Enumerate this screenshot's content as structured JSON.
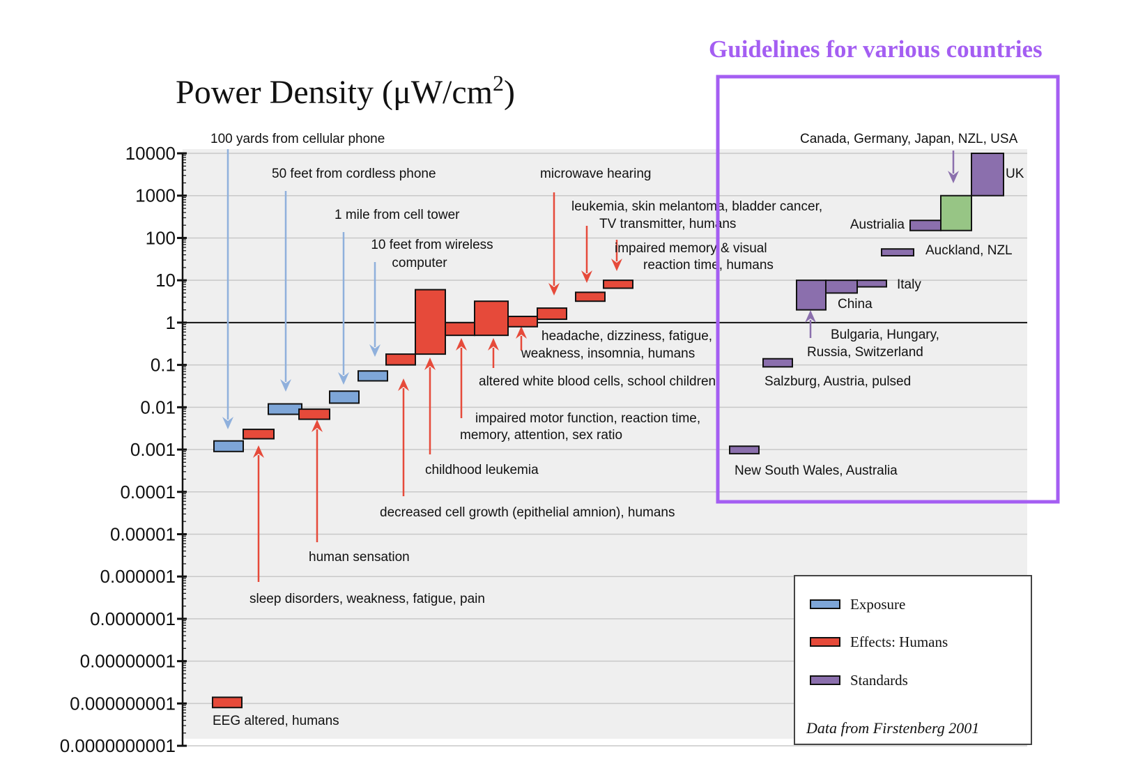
{
  "colors": {
    "exposure": "#7ea6d8",
    "effects": "#e64a3a",
    "standards": "#8b6fad",
    "standard_highlight": "#97c585",
    "highlight_box": "#a45ef2",
    "arrow_blue": "#8fb0dc",
    "arrow_red": "#e64a3a",
    "arrow_purple": "#8b6fad",
    "plot_bg": "#efefef",
    "grid": "#c8c8c8"
  },
  "title": {
    "main": "Power Density (μW/cm",
    "superscript": "2",
    "close": ")"
  },
  "highlight": {
    "title": "Guidelines for various countries"
  },
  "legend": {
    "items": [
      {
        "label": "Exposure",
        "category": "exposure"
      },
      {
        "label": "Effects:  Humans",
        "category": "effects"
      },
      {
        "label": "Standards",
        "category": "standards"
      }
    ],
    "source": "Data from Firstenberg 2001"
  },
  "chart_data": {
    "type": "bar",
    "ylabel": "Power Density (μW/cm2)",
    "yscale": "log",
    "ylim": [
      1e-10,
      10000
    ],
    "grid": true,
    "legend_position": "bottom-right",
    "y_ticks": [
      "10000",
      "1000",
      "100",
      "10",
      "1",
      "0.1",
      "0.01",
      "0.001",
      "0.0001",
      "0.00001",
      "0.000001",
      "0.0000001",
      "0.00000001",
      "0.000000001",
      "0.0000000001"
    ],
    "series": [
      {
        "name": "Exposure",
        "items": [
          {
            "label": "100 yards from cellular phone",
            "low": 0.0009,
            "high": 0.0016
          },
          {
            "label": "50 feet from cordless phone",
            "low": 0.0068,
            "high": 0.012
          },
          {
            "label": "1 mile from cell tower",
            "low": 0.0125,
            "high": 0.024
          },
          {
            "label": "10 feet from wireless computer",
            "low": 0.042,
            "high": 0.072
          }
        ]
      },
      {
        "name": "Effects:  Humans",
        "items": [
          {
            "label": "EEG altered, humans",
            "low": 8e-10,
            "high": 1.4e-09
          },
          {
            "label": "sleep disorders, weakness, fatigue, pain",
            "low": 0.0018,
            "high": 0.003
          },
          {
            "label": "human sensation",
            "low": 0.0052,
            "high": 0.009
          },
          {
            "label": "decreased cell growth (epithelial amnion), humans",
            "low": 0.1,
            "high": 0.18
          },
          {
            "label": "childhood leukemia",
            "low": 0.18,
            "high": 6.0
          },
          {
            "label": "impaired motor function, reaction time, memory, attention, sex ratio",
            "low": 0.5,
            "high": 1.0
          },
          {
            "label": "altered white blood cells, school children",
            "low": 0.5,
            "high": 3.2
          },
          {
            "label": "headache, dizziness, fatigue, weakness, insomnia, humans",
            "low": 0.8,
            "high": 1.4
          },
          {
            "label": "microwave hearing",
            "low": 1.2,
            "high": 2.2
          },
          {
            "label": "leukemia, skin melantoma, bladder cancer, TV transmitter, humans",
            "low": 3.2,
            "high": 5.2
          },
          {
            "label": "impaired memory & visual reaction time, humans",
            "low": 6.5,
            "high": 10
          }
        ]
      },
      {
        "name": "Standards",
        "items": [
          {
            "label": "New South Wales, Australia",
            "low": 0.0008,
            "high": 0.0012
          },
          {
            "label": "Salzburg, Austria, pulsed",
            "low": 0.09,
            "high": 0.14
          },
          {
            "label": "Bulgaria, Hungary, Russia, Switzerland",
            "low": 2,
            "high": 10
          },
          {
            "label": "China",
            "low": 5,
            "high": 10
          },
          {
            "label": "Italy",
            "low": 7,
            "high": 10
          },
          {
            "label": "Auckland, NZL",
            "low": 38,
            "high": 55
          },
          {
            "label": "Austrialia",
            "low": 150,
            "high": 260
          },
          {
            "label": "Canada, Germany, Japan, NZL, USA",
            "low": 150,
            "high": 1000
          },
          {
            "label": "UK",
            "low": 1000,
            "high": 10000
          }
        ]
      }
    ]
  }
}
